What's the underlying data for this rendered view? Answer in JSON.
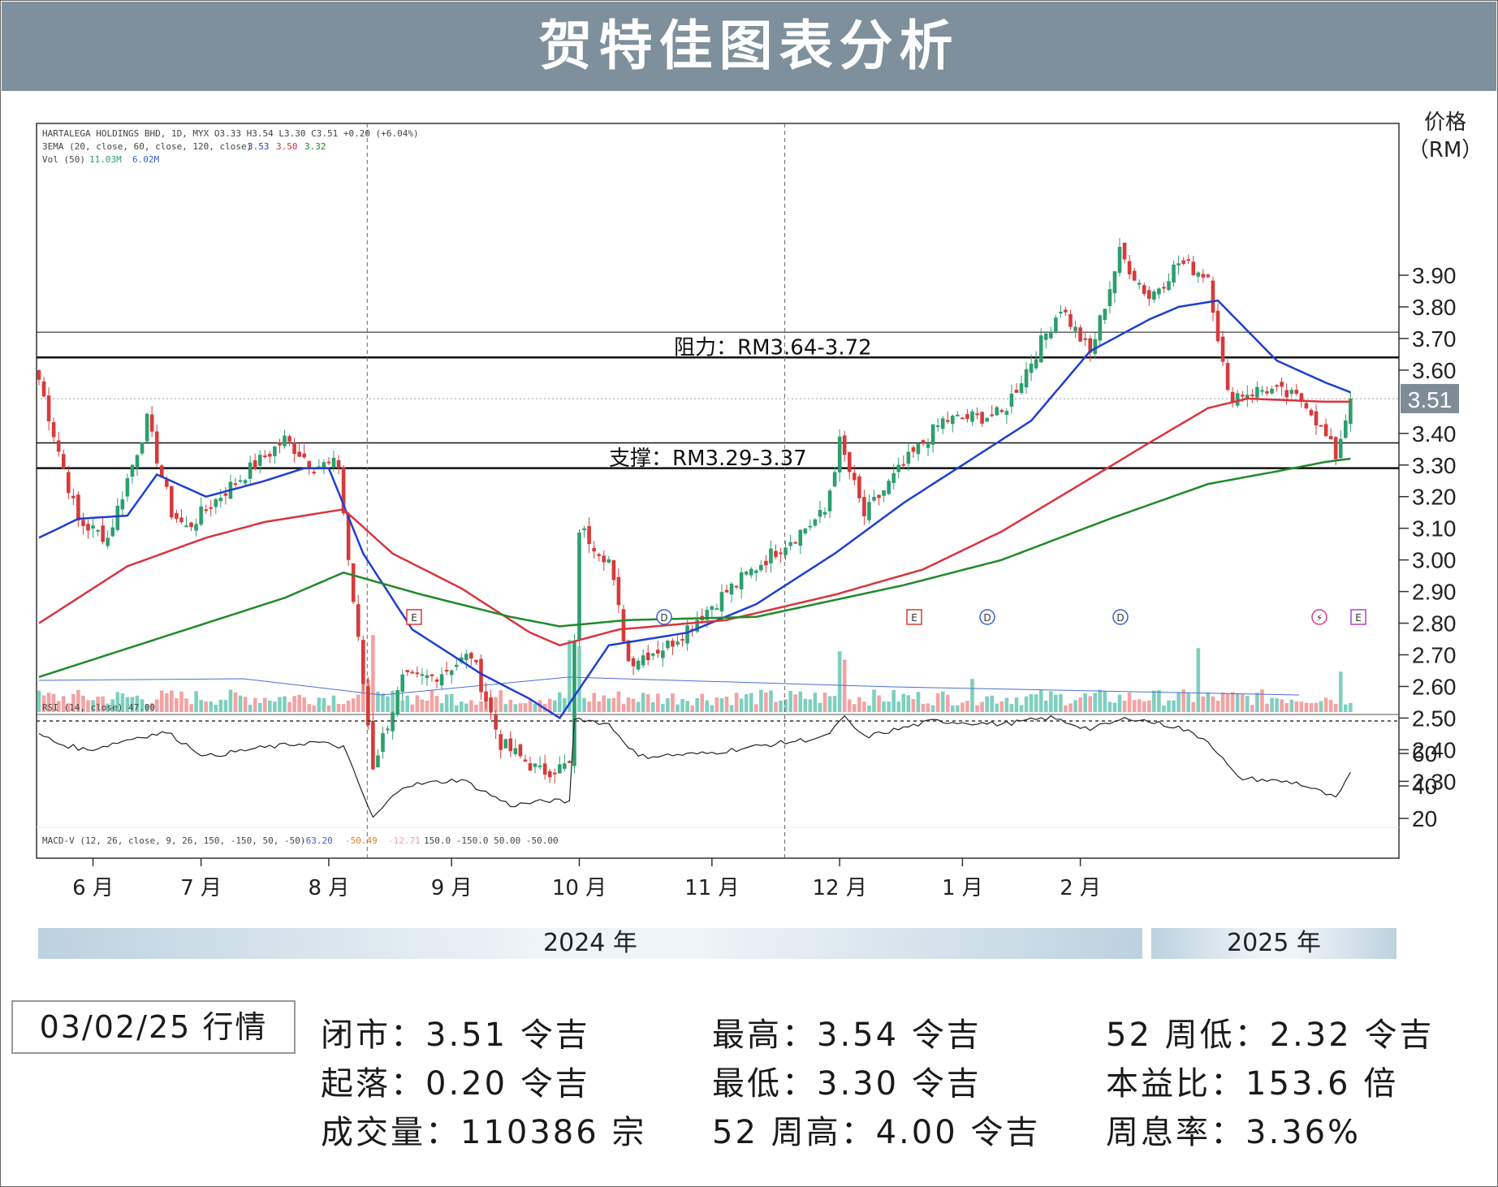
{
  "title": "贺特佳图表分析",
  "axis_title": {
    "line1": "价格",
    "line2": "（RM）"
  },
  "chart_header": {
    "line1": "HARTALEGA HOLDINGS BHD, 1D, MYX  O3.33  H3.54  L3.30  C3.51  +0.20 (+6.04%)",
    "line2_label": "3EMA (20, close, 60, close, 120, close)",
    "line2_values": [
      "3.53",
      "3.50",
      "3.32"
    ],
    "line3_label": "Vol (50)",
    "line3_values": [
      "11.03M",
      "6.02M"
    ],
    "rsi_label": "RSI (14, close)  47.00",
    "macd_label": "MACD-V (12, 26, close, 9, 26, 150, -150, 50, -50)",
    "macd_values": [
      "-63.20",
      "-50.49",
      "-12.71"
    ],
    "macd_levels": "150.0  -150.0  50.00  -50.00"
  },
  "colors": {
    "up": "#2e9e6e",
    "down": "#d73a3a",
    "ema20": "#1f3fcf",
    "ema60": "#d9343e",
    "ema120": "#1f8a2a",
    "vol_up": "#7fcfbf",
    "vol_down": "#f2a3a3",
    "banner": "#7d909b",
    "price_tag": "#7d8d98"
  },
  "price_tag": "3.51",
  "annotations": {
    "resistance": "阻力：RM3.64-3.72",
    "support": "支撑：RM3.29-3.37"
  },
  "event_markers": [
    "E",
    "D",
    "E",
    "D",
    "D",
    "⚡",
    "E"
  ],
  "chart_data": {
    "type": "candlestick",
    "y_ticks": [
      "3.90",
      "3.80",
      "3.70",
      "3.60",
      "3.40",
      "3.30",
      "3.20",
      "3.10",
      "3.00",
      "2.90",
      "2.80",
      "2.70",
      "2.60",
      "2.50",
      "2.40",
      "2.30"
    ],
    "ylim": [
      2.26,
      3.98
    ],
    "rsi_ticks": [
      "60",
      "40",
      "20"
    ],
    "rsi_range": [
      0,
      100
    ],
    "month_labels": [
      "6 月",
      "7 月",
      "8 月",
      "9 月",
      "10 月",
      "11 月",
      "12 月",
      "1 月",
      "2 月"
    ],
    "year_labels": [
      "2024 年",
      "2025 年"
    ],
    "resistance_levels": [
      3.64,
      3.72
    ],
    "support_levels": [
      3.29,
      3.37
    ],
    "last_close": 3.51,
    "price_keyframes": [
      [
        0,
        3.57
      ],
      [
        8,
        3.12
      ],
      [
        14,
        3.07
      ],
      [
        22,
        3.44
      ],
      [
        27,
        3.15
      ],
      [
        30,
        3.1
      ],
      [
        38,
        3.22
      ],
      [
        50,
        3.38
      ],
      [
        56,
        3.3
      ],
      [
        61,
        3.3
      ],
      [
        63,
        3.0
      ],
      [
        68,
        2.35
      ],
      [
        74,
        2.62
      ],
      [
        80,
        2.63
      ],
      [
        88,
        2.7
      ],
      [
        94,
        2.42
      ],
      [
        102,
        2.33
      ],
      [
        108,
        2.35
      ],
      [
        110,
        3.1
      ],
      [
        116,
        3.0
      ],
      [
        120,
        2.68
      ],
      [
        128,
        2.73
      ],
      [
        140,
        2.9
      ],
      [
        150,
        3.03
      ],
      [
        160,
        3.15
      ],
      [
        163,
        3.37
      ],
      [
        168,
        3.14
      ],
      [
        176,
        3.3
      ],
      [
        184,
        3.44
      ],
      [
        196,
        3.46
      ],
      [
        202,
        3.63
      ],
      [
        208,
        3.8
      ],
      [
        214,
        3.65
      ],
      [
        220,
        3.97
      ],
      [
        226,
        3.83
      ],
      [
        232,
        3.94
      ],
      [
        238,
        3.9
      ],
      [
        242,
        3.52
      ],
      [
        250,
        3.54
      ],
      [
        258,
        3.5
      ],
      [
        264,
        3.33
      ],
      [
        267,
        3.51
      ]
    ],
    "ema_keyframes": {
      "ema20": [
        [
          0,
          3.07
        ],
        [
          8,
          3.13
        ],
        [
          18,
          3.14
        ],
        [
          24,
          3.27
        ],
        [
          34,
          3.2
        ],
        [
          46,
          3.25
        ],
        [
          54,
          3.29
        ],
        [
          59,
          3.29
        ],
        [
          66,
          3.02
        ],
        [
          76,
          2.78
        ],
        [
          90,
          2.64
        ],
        [
          100,
          2.56
        ],
        [
          106,
          2.5
        ],
        [
          116,
          2.73
        ],
        [
          132,
          2.77
        ],
        [
          146,
          2.86
        ],
        [
          162,
          3.02
        ],
        [
          176,
          3.18
        ],
        [
          190,
          3.32
        ],
        [
          202,
          3.44
        ],
        [
          214,
          3.66
        ],
        [
          226,
          3.76
        ],
        [
          232,
          3.8
        ],
        [
          240,
          3.82
        ],
        [
          252,
          3.63
        ],
        [
          262,
          3.56
        ],
        [
          267,
          3.53
        ]
      ],
      "ema60": [
        [
          0,
          2.8
        ],
        [
          18,
          2.98
        ],
        [
          34,
          3.07
        ],
        [
          46,
          3.12
        ],
        [
          58,
          3.15
        ],
        [
          62,
          3.16
        ],
        [
          72,
          3.02
        ],
        [
          86,
          2.91
        ],
        [
          100,
          2.77
        ],
        [
          106,
          2.73
        ],
        [
          118,
          2.78
        ],
        [
          140,
          2.81
        ],
        [
          162,
          2.89
        ],
        [
          180,
          2.97
        ],
        [
          196,
          3.09
        ],
        [
          210,
          3.22
        ],
        [
          226,
          3.37
        ],
        [
          238,
          3.48
        ],
        [
          246,
          3.51
        ],
        [
          262,
          3.5
        ],
        [
          267,
          3.5
        ]
      ],
      "ema120": [
        [
          0,
          2.63
        ],
        [
          18,
          2.72
        ],
        [
          34,
          2.8
        ],
        [
          50,
          2.88
        ],
        [
          62,
          2.96
        ],
        [
          78,
          2.89
        ],
        [
          96,
          2.82
        ],
        [
          106,
          2.79
        ],
        [
          120,
          2.81
        ],
        [
          146,
          2.82
        ],
        [
          176,
          2.92
        ],
        [
          196,
          3.0
        ],
        [
          218,
          3.13
        ],
        [
          238,
          3.24
        ],
        [
          252,
          3.28
        ],
        [
          262,
          3.31
        ],
        [
          267,
          3.32
        ]
      ]
    },
    "rsi_keyframes": [
      [
        0,
        72
      ],
      [
        4,
        66
      ],
      [
        10,
        62
      ],
      [
        20,
        70
      ],
      [
        26,
        73
      ],
      [
        34,
        58
      ],
      [
        44,
        63
      ],
      [
        56,
        67
      ],
      [
        62,
        64
      ],
      [
        68,
        20
      ],
      [
        74,
        40
      ],
      [
        86,
        44
      ],
      [
        96,
        28
      ],
      [
        104,
        31
      ],
      [
        108,
        30
      ],
      [
        109,
        82
      ],
      [
        116,
        78
      ],
      [
        122,
        58
      ],
      [
        136,
        60
      ],
      [
        150,
        66
      ],
      [
        160,
        70
      ],
      [
        164,
        82
      ],
      [
        168,
        70
      ],
      [
        182,
        80
      ],
      [
        196,
        78
      ],
      [
        206,
        82
      ],
      [
        214,
        75
      ],
      [
        222,
        82
      ],
      [
        232,
        76
      ],
      [
        238,
        68
      ],
      [
        244,
        45
      ],
      [
        256,
        42
      ],
      [
        262,
        35
      ],
      [
        264,
        32
      ],
      [
        267,
        47
      ]
    ],
    "month_start_index": [
      11,
      33,
      59,
      84,
      110,
      137,
      163,
      188,
      212
    ]
  },
  "info": {
    "date": "03/02/25 行情",
    "close": "闭市：3.51 令吉",
    "change": "起落：0.20 令吉",
    "volume": "成交量：110386 宗",
    "high": "最高：3.54 令吉",
    "low": "最低：3.30 令吉",
    "high52": "52 周高：4.00 令吉",
    "low52": "52 周低：2.32 令吉",
    "pe": "本益比：153.6 倍",
    "yield": "周息率：3.36%"
  }
}
